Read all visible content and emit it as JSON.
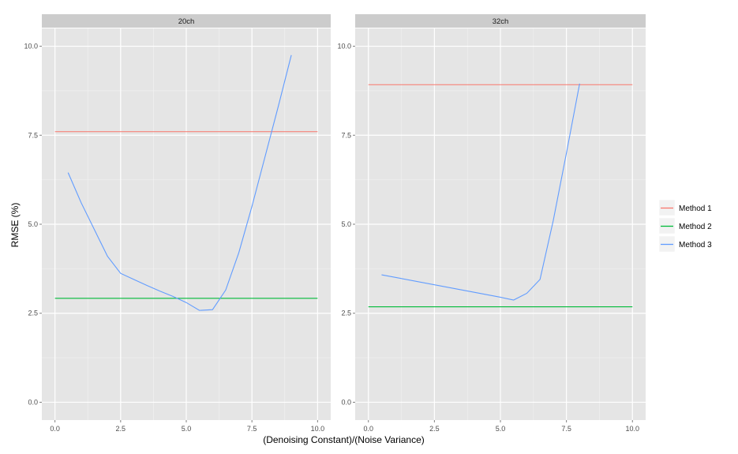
{
  "chart_data": {
    "type": "line",
    "xlabel": "(Denoising Constant)/(Noise Variance)",
    "ylabel": "RMSE (%)",
    "xlim": [
      -0.5,
      10.5
    ],
    "ylim": [
      -0.5,
      10.5
    ],
    "x_ticks": [
      0.0,
      2.5,
      5.0,
      7.5,
      10.0
    ],
    "x_tick_labels": [
      "0.0",
      "2.5",
      "5.0",
      "7.5",
      "10.0"
    ],
    "y_ticks": [
      0.0,
      2.5,
      5.0,
      7.5,
      10.0
    ],
    "y_tick_labels": [
      "0.0",
      "2.5",
      "5.0",
      "7.5",
      "10.0"
    ],
    "grid": true,
    "legend_position": "right",
    "legend": [
      {
        "name": "Method 1",
        "color": "#F8766D"
      },
      {
        "name": "Method 2",
        "color": "#00BA38"
      },
      {
        "name": "Method 3",
        "color": "#619CFF"
      }
    ],
    "panels": [
      {
        "label": "20ch",
        "series": [
          {
            "name": "Method 1",
            "x": [
              0.0,
              10.0
            ],
            "y": [
              7.6,
              7.6
            ]
          },
          {
            "name": "Method 2",
            "x": [
              0.0,
              10.0
            ],
            "y": [
              2.92,
              2.92
            ]
          },
          {
            "name": "Method 3",
            "x": [
              0.5,
              1.0,
              1.5,
              2.0,
              2.5,
              3.0,
              3.5,
              4.0,
              4.5,
              5.0,
              5.5,
              6.0,
              6.5,
              7.0,
              7.5,
              8.0,
              8.5,
              9.0
            ],
            "y": [
              6.45,
              5.6,
              4.85,
              4.1,
              3.62,
              3.45,
              3.28,
              3.12,
              2.97,
              2.8,
              2.58,
              2.6,
              3.15,
              4.2,
              5.5,
              6.9,
              8.3,
              9.75
            ]
          }
        ]
      },
      {
        "label": "32ch",
        "series": [
          {
            "name": "Method 1",
            "x": [
              0.0,
              10.0
            ],
            "y": [
              8.92,
              8.92
            ]
          },
          {
            "name": "Method 2",
            "x": [
              0.0,
              10.0
            ],
            "y": [
              2.68,
              2.68
            ]
          },
          {
            "name": "Method 3",
            "x": [
              0.5,
              5.0,
              5.5,
              6.0,
              6.5,
              7.0,
              7.5,
              8.0
            ],
            "y": [
              3.58,
              2.95,
              2.87,
              3.06,
              3.45,
              5.1,
              7.0,
              8.95
            ]
          }
        ]
      }
    ]
  }
}
